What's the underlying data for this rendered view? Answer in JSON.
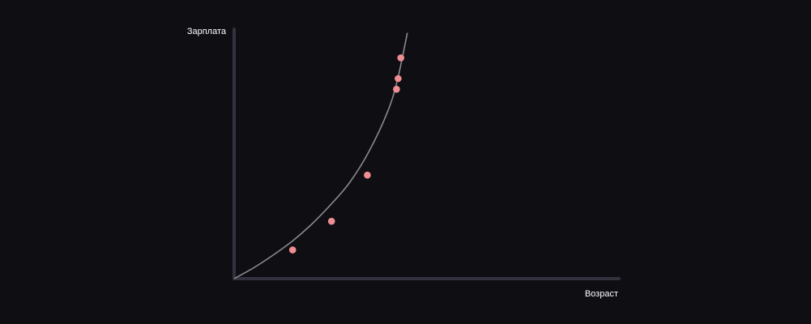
{
  "chart_data": {
    "type": "scatter",
    "title": "",
    "xlabel": "Возраст",
    "ylabel": "Зарплата",
    "xlim": [
      0,
      10
    ],
    "ylim": [
      0,
      10
    ],
    "grid": false,
    "curve": {
      "kind": "exponential",
      "x": [
        0,
        0.5,
        1,
        1.5,
        2,
        2.5,
        3,
        3.5,
        4,
        4.25,
        4.5
      ],
      "y": [
        0,
        0.43,
        0.93,
        1.49,
        2.16,
        2.95,
        3.85,
        5.09,
        6.74,
        8.01,
        9.85
      ]
    },
    "points": [
      {
        "x": 1.52,
        "y": 1.15
      },
      {
        "x": 2.53,
        "y": 2.3
      },
      {
        "x": 3.46,
        "y": 4.15
      },
      {
        "x": 4.22,
        "y": 7.59
      },
      {
        "x": 4.26,
        "y": 8.02
      },
      {
        "x": 4.33,
        "y": 8.85
      }
    ],
    "colors": {
      "background": "#0f0e13",
      "axis": "#34313f",
      "curve": "#8a8990",
      "point": "#ef8e92",
      "label": "#ffffff"
    }
  }
}
